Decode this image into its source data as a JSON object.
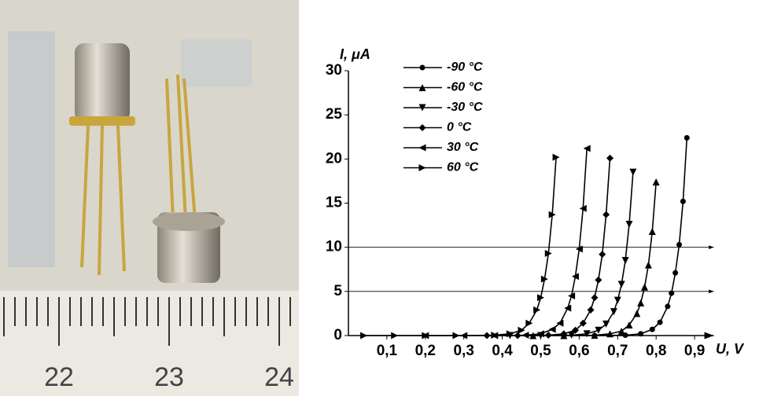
{
  "photo": {
    "ruler_labels": [
      "22",
      "23",
      "24"
    ]
  },
  "chart_data": {
    "type": "line",
    "ylabel": "I, μA",
    "xlabel": "U, V",
    "xlim": [
      0,
      0.95
    ],
    "ylim": [
      0,
      30
    ],
    "xticks": [
      {
        "value": 0.1,
        "label": "0,1"
      },
      {
        "value": 0.2,
        "label": "0,2"
      },
      {
        "value": 0.3,
        "label": "0,3"
      },
      {
        "value": 0.4,
        "label": "0,4"
      },
      {
        "value": 0.5,
        "label": "0,5"
      },
      {
        "value": 0.6,
        "label": "0,6"
      },
      {
        "value": 0.7,
        "label": "0,7"
      },
      {
        "value": 0.8,
        "label": "0,8"
      },
      {
        "value": 0.9,
        "label": "0,9"
      }
    ],
    "yticks": [
      0,
      5,
      10,
      15,
      20,
      25,
      30
    ],
    "reference_lines": [
      5,
      10
    ],
    "legend": "upper left",
    "series": [
      {
        "name": "-90 °C",
        "marker": "circle",
        "color": "#000000",
        "x": [
          0.56,
          0.64,
          0.72,
          0.76,
          0.79,
          0.81,
          0.83,
          0.84,
          0.85,
          0.86,
          0.87,
          0.88
        ],
        "values": [
          0,
          0,
          0.04,
          0.2,
          0.7,
          1.5,
          3.3,
          4.8,
          7.1,
          10.3,
          15.2,
          22.4
        ]
      },
      {
        "name": "-60 °C",
        "marker": "triangle-up",
        "color": "#000000",
        "x": [
          0.48,
          0.56,
          0.64,
          0.68,
          0.71,
          0.73,
          0.75,
          0.76,
          0.77,
          0.78,
          0.79,
          0.8
        ],
        "values": [
          0,
          0,
          0.03,
          0.2,
          0.5,
          1.2,
          2.5,
          3.7,
          5.5,
          8,
          11.8,
          17.4
        ]
      },
      {
        "name": "-30 °C",
        "marker": "triangle-down",
        "color": "#000000",
        "x": [
          0.42,
          0.5,
          0.58,
          0.62,
          0.65,
          0.67,
          0.69,
          0.7,
          0.71,
          0.72,
          0.73,
          0.74
        ],
        "values": [
          0,
          0,
          0.04,
          0.2,
          0.6,
          1.3,
          2.7,
          4,
          5.8,
          8.5,
          12.6,
          18.5
        ]
      },
      {
        "name": "0 °C",
        "marker": "diamond",
        "color": "#000000",
        "x": [
          0.36,
          0.44,
          0.52,
          0.56,
          0.59,
          0.61,
          0.63,
          0.64,
          0.65,
          0.66,
          0.67,
          0.68
        ],
        "values": [
          0,
          0,
          0.04,
          0.2,
          0.6,
          1.4,
          2.9,
          4.3,
          6.3,
          9.2,
          13.7,
          20.1
        ]
      },
      {
        "name": "30 °C",
        "marker": "triangle-left",
        "color": "#000000",
        "x": [
          0.2,
          0.3,
          0.38,
          0.46,
          0.5,
          0.53,
          0.55,
          0.57,
          0.58,
          0.59,
          0.6,
          0.61,
          0.62
        ],
        "values": [
          0,
          0,
          0,
          0.04,
          0.2,
          0.7,
          1.4,
          3.1,
          4.5,
          6.7,
          9.8,
          14.4,
          21.2
        ]
      },
      {
        "name": "60 °C",
        "marker": "triangle-right",
        "color": "#000000",
        "x": [
          0.04,
          0.12,
          0.2,
          0.28,
          0.38,
          0.42,
          0.45,
          0.47,
          0.49,
          0.5,
          0.51,
          0.52,
          0.53,
          0.54
        ],
        "values": [
          0,
          0,
          0,
          0,
          0.04,
          0.2,
          0.6,
          1.4,
          2.9,
          4.3,
          6.4,
          9.3,
          13.7,
          20.2
        ]
      }
    ]
  }
}
